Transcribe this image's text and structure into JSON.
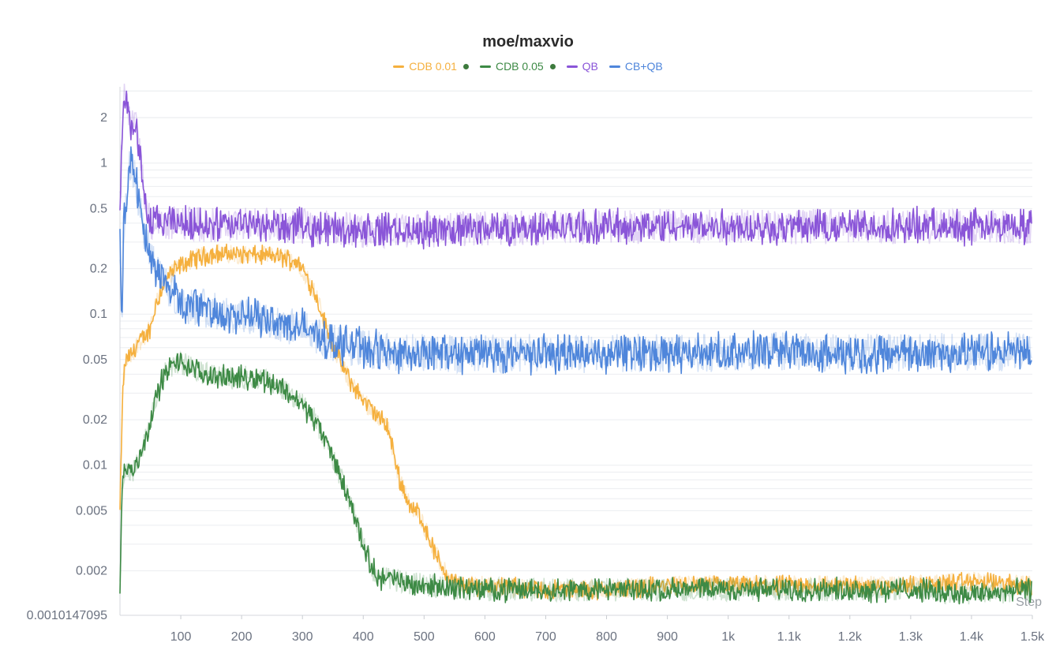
{
  "chart_data": {
    "type": "line",
    "title": "moe/maxvio",
    "xlabel": "Step",
    "ylabel": "",
    "xlim": [
      0,
      1500
    ],
    "ylim": [
      0.0010147095,
      3.2
    ],
    "yscale": "log",
    "grid": true,
    "legend_position": "top-center",
    "x_ticks": [
      {
        "value": 100,
        "label": "100"
      },
      {
        "value": 200,
        "label": "200"
      },
      {
        "value": 300,
        "label": "300"
      },
      {
        "value": 400,
        "label": "400"
      },
      {
        "value": 500,
        "label": "500"
      },
      {
        "value": 600,
        "label": "600"
      },
      {
        "value": 700,
        "label": "700"
      },
      {
        "value": 800,
        "label": "800"
      },
      {
        "value": 900,
        "label": "900"
      },
      {
        "value": 1000,
        "label": "1k"
      },
      {
        "value": 1100,
        "label": "1.1k"
      },
      {
        "value": 1200,
        "label": "1.2k"
      },
      {
        "value": 1300,
        "label": "1.3k"
      },
      {
        "value": 1400,
        "label": "1.4k"
      },
      {
        "value": 1500,
        "label": "1.5k"
      }
    ],
    "y_ticks": [
      {
        "value": 2,
        "label": "2"
      },
      {
        "value": 1,
        "label": "1"
      },
      {
        "value": 0.5,
        "label": "0.5"
      },
      {
        "value": 0.2,
        "label": "0.2"
      },
      {
        "value": 0.1,
        "label": "0.1"
      },
      {
        "value": 0.05,
        "label": "0.05"
      },
      {
        "value": 0.02,
        "label": "0.02"
      },
      {
        "value": 0.01,
        "label": "0.01"
      },
      {
        "value": 0.005,
        "label": "0.005"
      },
      {
        "value": 0.002,
        "label": "0.002"
      },
      {
        "value": 0.0010147095,
        "label": "0.0010147095"
      }
    ],
    "series": [
      {
        "name": "CDB 0.01",
        "color": "#f5b03e",
        "marker": true,
        "x": [
          0,
          5,
          10,
          20,
          30,
          40,
          50,
          60,
          70,
          80,
          100,
          120,
          150,
          180,
          200,
          230,
          260,
          290,
          300,
          320,
          340,
          360,
          380,
          400,
          420,
          440,
          450,
          460,
          480,
          490,
          500,
          520,
          540,
          560,
          600,
          700,
          800,
          900,
          1000,
          1100,
          1200,
          1300,
          1400,
          1500
        ],
        "y": [
          0.005,
          0.035,
          0.05,
          0.055,
          0.065,
          0.07,
          0.08,
          0.12,
          0.15,
          0.18,
          0.21,
          0.23,
          0.25,
          0.25,
          0.25,
          0.245,
          0.24,
          0.225,
          0.2,
          0.14,
          0.08,
          0.05,
          0.035,
          0.027,
          0.022,
          0.018,
          0.012,
          0.008,
          0.005,
          0.005,
          0.004,
          0.0025,
          0.0018,
          0.0016,
          0.0016,
          0.0015,
          0.0015,
          0.0016,
          0.0016,
          0.0016,
          0.0016,
          0.0016,
          0.0017,
          0.0016
        ]
      },
      {
        "name": "CDB 0.05",
        "color": "#3d8a45",
        "marker": true,
        "x": [
          0,
          3,
          6,
          10,
          20,
          30,
          40,
          50,
          60,
          70,
          80,
          90,
          100,
          110,
          120,
          140,
          170,
          200,
          230,
          250,
          270,
          300,
          320,
          340,
          360,
          380,
          400,
          410,
          420,
          430,
          440,
          460,
          500,
          600,
          700,
          800,
          900,
          1000,
          1100,
          1200,
          1300,
          1400,
          1500
        ],
        "y": [
          0.0015,
          0.006,
          0.009,
          0.0095,
          0.009,
          0.011,
          0.014,
          0.02,
          0.028,
          0.038,
          0.043,
          0.047,
          0.048,
          0.046,
          0.043,
          0.04,
          0.038,
          0.038,
          0.038,
          0.035,
          0.032,
          0.025,
          0.02,
          0.014,
          0.009,
          0.0055,
          0.003,
          0.0023,
          0.0019,
          0.0018,
          0.0018,
          0.0017,
          0.0016,
          0.0015,
          0.0015,
          0.0015,
          0.0015,
          0.0015,
          0.0015,
          0.0015,
          0.0015,
          0.0014,
          0.0015
        ]
      },
      {
        "name": "QB",
        "color": "#8a55d8",
        "marker": false,
        "x": [
          0,
          3,
          6,
          10,
          14,
          18,
          22,
          26,
          30,
          35,
          40,
          45,
          50,
          60,
          80,
          100,
          150,
          200,
          300,
          400,
          500,
          600,
          700,
          800,
          900,
          1000,
          1100,
          1200,
          1300,
          1400,
          1500
        ],
        "y": [
          0.5,
          1.2,
          2.6,
          2.8,
          2.4,
          1.6,
          1.8,
          1.9,
          1.4,
          0.9,
          0.6,
          0.45,
          0.4,
          0.4,
          0.4,
          0.4,
          0.39,
          0.39,
          0.38,
          0.36,
          0.36,
          0.37,
          0.37,
          0.38,
          0.38,
          0.38,
          0.38,
          0.38,
          0.38,
          0.38,
          0.38
        ]
      },
      {
        "name": "CB+QB",
        "color": "#4f86db",
        "marker": false,
        "x": [
          0,
          3,
          6,
          10,
          15,
          20,
          25,
          30,
          40,
          50,
          60,
          80,
          100,
          150,
          200,
          250,
          300,
          350,
          400,
          450,
          500,
          600,
          700,
          800,
          900,
          1000,
          1100,
          1200,
          1300,
          1400,
          1500
        ],
        "y": [
          0.3,
          0.07,
          0.35,
          0.6,
          0.9,
          1.0,
          0.8,
          0.6,
          0.35,
          0.25,
          0.2,
          0.15,
          0.12,
          0.105,
          0.095,
          0.09,
          0.08,
          0.065,
          0.06,
          0.055,
          0.055,
          0.055,
          0.055,
          0.055,
          0.055,
          0.055,
          0.057,
          0.055,
          0.056,
          0.056,
          0.056
        ]
      }
    ]
  }
}
